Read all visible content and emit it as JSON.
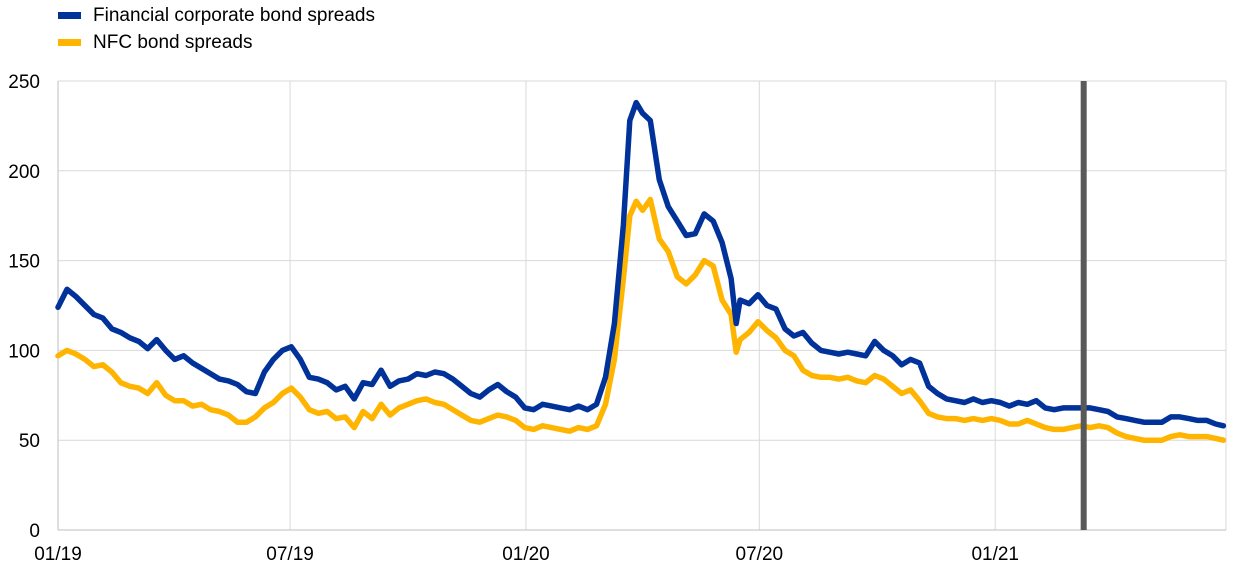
{
  "chart_data": {
    "type": "line",
    "x_axis_type": "date",
    "x_range": [
      "2019-01-01",
      "2021-06-30"
    ],
    "ylim": [
      0,
      250
    ],
    "yticks": [
      0,
      50,
      100,
      150,
      200,
      250
    ],
    "xticks": [
      {
        "date": "2019-01-01",
        "label": "01/19"
      },
      {
        "date": "2019-07-01",
        "label": "07/19"
      },
      {
        "date": "2020-01-01",
        "label": "01/20"
      },
      {
        "date": "2020-07-01",
        "label": "07/20"
      },
      {
        "date": "2021-01-01",
        "label": "01/21"
      }
    ],
    "grid": {
      "horizontal": true,
      "vertical": true
    },
    "legend_position": "top-left",
    "vertical_marker": {
      "date": "2021-03-11",
      "color": "#595959"
    },
    "series": [
      {
        "name": "Financial corporate bond spreads",
        "color": "#003299",
        "points": [
          [
            "2019-01-01",
            124
          ],
          [
            "2019-01-08",
            134
          ],
          [
            "2019-01-15",
            130
          ],
          [
            "2019-01-22",
            125
          ],
          [
            "2019-01-29",
            120
          ],
          [
            "2019-02-05",
            118
          ],
          [
            "2019-02-12",
            112
          ],
          [
            "2019-02-19",
            110
          ],
          [
            "2019-02-26",
            107
          ],
          [
            "2019-03-05",
            105
          ],
          [
            "2019-03-12",
            101
          ],
          [
            "2019-03-19",
            106
          ],
          [
            "2019-03-26",
            100
          ],
          [
            "2019-04-02",
            95
          ],
          [
            "2019-04-09",
            97
          ],
          [
            "2019-04-16",
            93
          ],
          [
            "2019-04-23",
            90
          ],
          [
            "2019-04-30",
            87
          ],
          [
            "2019-05-07",
            84
          ],
          [
            "2019-05-14",
            83
          ],
          [
            "2019-05-21",
            81
          ],
          [
            "2019-05-28",
            77
          ],
          [
            "2019-06-04",
            76
          ],
          [
            "2019-06-11",
            88
          ],
          [
            "2019-06-18",
            95
          ],
          [
            "2019-06-25",
            100
          ],
          [
            "2019-07-02",
            102
          ],
          [
            "2019-07-09",
            95
          ],
          [
            "2019-07-16",
            85
          ],
          [
            "2019-07-23",
            84
          ],
          [
            "2019-07-30",
            82
          ],
          [
            "2019-08-06",
            78
          ],
          [
            "2019-08-13",
            80
          ],
          [
            "2019-08-20",
            73
          ],
          [
            "2019-08-27",
            82
          ],
          [
            "2019-09-03",
            81
          ],
          [
            "2019-09-10",
            89
          ],
          [
            "2019-09-17",
            80
          ],
          [
            "2019-09-24",
            83
          ],
          [
            "2019-10-01",
            84
          ],
          [
            "2019-10-08",
            87
          ],
          [
            "2019-10-15",
            86
          ],
          [
            "2019-10-22",
            88
          ],
          [
            "2019-10-29",
            87
          ],
          [
            "2019-11-05",
            84
          ],
          [
            "2019-11-12",
            80
          ],
          [
            "2019-11-19",
            76
          ],
          [
            "2019-11-26",
            74
          ],
          [
            "2019-12-03",
            78
          ],
          [
            "2019-12-10",
            81
          ],
          [
            "2019-12-17",
            77
          ],
          [
            "2019-12-24",
            74
          ],
          [
            "2019-12-31",
            68
          ],
          [
            "2020-01-07",
            67
          ],
          [
            "2020-01-14",
            70
          ],
          [
            "2020-01-21",
            69
          ],
          [
            "2020-01-28",
            68
          ],
          [
            "2020-02-04",
            67
          ],
          [
            "2020-02-11",
            69
          ],
          [
            "2020-02-18",
            67
          ],
          [
            "2020-02-25",
            70
          ],
          [
            "2020-03-03",
            85
          ],
          [
            "2020-03-10",
            115
          ],
          [
            "2020-03-17",
            170
          ],
          [
            "2020-03-22",
            228
          ],
          [
            "2020-03-27",
            238
          ],
          [
            "2020-04-01",
            232
          ],
          [
            "2020-04-07",
            228
          ],
          [
            "2020-04-14",
            195
          ],
          [
            "2020-04-21",
            180
          ],
          [
            "2020-04-28",
            172
          ],
          [
            "2020-05-05",
            164
          ],
          [
            "2020-05-12",
            165
          ],
          [
            "2020-05-19",
            176
          ],
          [
            "2020-05-26",
            172
          ],
          [
            "2020-06-02",
            160
          ],
          [
            "2020-06-09",
            140
          ],
          [
            "2020-06-13",
            115
          ],
          [
            "2020-06-16",
            128
          ],
          [
            "2020-06-23",
            126
          ],
          [
            "2020-06-30",
            131
          ],
          [
            "2020-07-07",
            125
          ],
          [
            "2020-07-14",
            123
          ],
          [
            "2020-07-21",
            112
          ],
          [
            "2020-07-28",
            108
          ],
          [
            "2020-08-04",
            110
          ],
          [
            "2020-08-11",
            104
          ],
          [
            "2020-08-18",
            100
          ],
          [
            "2020-08-25",
            99
          ],
          [
            "2020-09-01",
            98
          ],
          [
            "2020-09-08",
            99
          ],
          [
            "2020-09-15",
            98
          ],
          [
            "2020-09-22",
            97
          ],
          [
            "2020-09-29",
            105
          ],
          [
            "2020-10-06",
            100
          ],
          [
            "2020-10-13",
            97
          ],
          [
            "2020-10-20",
            92
          ],
          [
            "2020-10-27",
            95
          ],
          [
            "2020-11-03",
            93
          ],
          [
            "2020-11-10",
            80
          ],
          [
            "2020-11-17",
            76
          ],
          [
            "2020-11-24",
            73
          ],
          [
            "2020-12-01",
            72
          ],
          [
            "2020-12-08",
            71
          ],
          [
            "2020-12-15",
            73
          ],
          [
            "2020-12-22",
            71
          ],
          [
            "2020-12-29",
            72
          ],
          [
            "2021-01-05",
            71
          ],
          [
            "2021-01-12",
            69
          ],
          [
            "2021-01-19",
            71
          ],
          [
            "2021-01-26",
            70
          ],
          [
            "2021-02-02",
            72
          ],
          [
            "2021-02-09",
            68
          ],
          [
            "2021-02-16",
            67
          ],
          [
            "2021-02-23",
            68
          ],
          [
            "2021-03-02",
            68
          ],
          [
            "2021-03-09",
            68
          ],
          [
            "2021-03-16",
            68
          ],
          [
            "2021-03-23",
            67
          ],
          [
            "2021-03-30",
            66
          ],
          [
            "2021-04-06",
            63
          ],
          [
            "2021-04-13",
            62
          ],
          [
            "2021-04-20",
            61
          ],
          [
            "2021-04-27",
            60
          ],
          [
            "2021-05-04",
            60
          ],
          [
            "2021-05-11",
            60
          ],
          [
            "2021-05-18",
            63
          ],
          [
            "2021-05-25",
            63
          ],
          [
            "2021-06-01",
            62
          ],
          [
            "2021-06-08",
            61
          ],
          [
            "2021-06-15",
            61
          ],
          [
            "2021-06-22",
            59
          ],
          [
            "2021-06-28",
            58
          ]
        ]
      },
      {
        "name": "NFC bond spreads",
        "color": "#FFB400",
        "points": [
          [
            "2019-01-01",
            97
          ],
          [
            "2019-01-08",
            100
          ],
          [
            "2019-01-15",
            98
          ],
          [
            "2019-01-22",
            95
          ],
          [
            "2019-01-29",
            91
          ],
          [
            "2019-02-05",
            92
          ],
          [
            "2019-02-12",
            88
          ],
          [
            "2019-02-19",
            82
          ],
          [
            "2019-02-26",
            80
          ],
          [
            "2019-03-05",
            79
          ],
          [
            "2019-03-12",
            76
          ],
          [
            "2019-03-19",
            82
          ],
          [
            "2019-03-26",
            75
          ],
          [
            "2019-04-02",
            72
          ],
          [
            "2019-04-09",
            72
          ],
          [
            "2019-04-16",
            69
          ],
          [
            "2019-04-23",
            70
          ],
          [
            "2019-04-30",
            67
          ],
          [
            "2019-05-07",
            66
          ],
          [
            "2019-05-14",
            64
          ],
          [
            "2019-05-21",
            60
          ],
          [
            "2019-05-28",
            60
          ],
          [
            "2019-06-04",
            63
          ],
          [
            "2019-06-11",
            68
          ],
          [
            "2019-06-18",
            71
          ],
          [
            "2019-06-25",
            76
          ],
          [
            "2019-07-02",
            79
          ],
          [
            "2019-07-09",
            74
          ],
          [
            "2019-07-16",
            67
          ],
          [
            "2019-07-23",
            65
          ],
          [
            "2019-07-30",
            66
          ],
          [
            "2019-08-06",
            62
          ],
          [
            "2019-08-13",
            63
          ],
          [
            "2019-08-20",
            57
          ],
          [
            "2019-08-27",
            66
          ],
          [
            "2019-09-03",
            62
          ],
          [
            "2019-09-10",
            70
          ],
          [
            "2019-09-17",
            64
          ],
          [
            "2019-09-24",
            68
          ],
          [
            "2019-10-01",
            70
          ],
          [
            "2019-10-08",
            72
          ],
          [
            "2019-10-15",
            73
          ],
          [
            "2019-10-22",
            71
          ],
          [
            "2019-10-29",
            70
          ],
          [
            "2019-11-05",
            67
          ],
          [
            "2019-11-12",
            64
          ],
          [
            "2019-11-19",
            61
          ],
          [
            "2019-11-26",
            60
          ],
          [
            "2019-12-03",
            62
          ],
          [
            "2019-12-10",
            64
          ],
          [
            "2019-12-17",
            63
          ],
          [
            "2019-12-24",
            61
          ],
          [
            "2019-12-31",
            57
          ],
          [
            "2020-01-07",
            56
          ],
          [
            "2020-01-14",
            58
          ],
          [
            "2020-01-21",
            57
          ],
          [
            "2020-01-28",
            56
          ],
          [
            "2020-02-04",
            55
          ],
          [
            "2020-02-11",
            57
          ],
          [
            "2020-02-18",
            56
          ],
          [
            "2020-02-25",
            58
          ],
          [
            "2020-03-03",
            70
          ],
          [
            "2020-03-10",
            95
          ],
          [
            "2020-03-17",
            140
          ],
          [
            "2020-03-22",
            175
          ],
          [
            "2020-03-27",
            183
          ],
          [
            "2020-04-01",
            178
          ],
          [
            "2020-04-07",
            184
          ],
          [
            "2020-04-14",
            162
          ],
          [
            "2020-04-21",
            155
          ],
          [
            "2020-04-28",
            141
          ],
          [
            "2020-05-05",
            137
          ],
          [
            "2020-05-12",
            142
          ],
          [
            "2020-05-19",
            150
          ],
          [
            "2020-05-26",
            147
          ],
          [
            "2020-06-02",
            128
          ],
          [
            "2020-06-09",
            120
          ],
          [
            "2020-06-13",
            99
          ],
          [
            "2020-06-16",
            106
          ],
          [
            "2020-06-23",
            110
          ],
          [
            "2020-06-30",
            116
          ],
          [
            "2020-07-07",
            111
          ],
          [
            "2020-07-14",
            107
          ],
          [
            "2020-07-21",
            100
          ],
          [
            "2020-07-28",
            97
          ],
          [
            "2020-08-04",
            89
          ],
          [
            "2020-08-11",
            86
          ],
          [
            "2020-08-18",
            85
          ],
          [
            "2020-08-25",
            85
          ],
          [
            "2020-09-01",
            84
          ],
          [
            "2020-09-08",
            85
          ],
          [
            "2020-09-15",
            83
          ],
          [
            "2020-09-22",
            82
          ],
          [
            "2020-09-29",
            86
          ],
          [
            "2020-10-06",
            84
          ],
          [
            "2020-10-13",
            80
          ],
          [
            "2020-10-20",
            76
          ],
          [
            "2020-10-27",
            78
          ],
          [
            "2020-11-03",
            72
          ],
          [
            "2020-11-10",
            65
          ],
          [
            "2020-11-17",
            63
          ],
          [
            "2020-11-24",
            62
          ],
          [
            "2020-12-01",
            62
          ],
          [
            "2020-12-08",
            61
          ],
          [
            "2020-12-15",
            62
          ],
          [
            "2020-12-22",
            61
          ],
          [
            "2020-12-29",
            62
          ],
          [
            "2021-01-05",
            61
          ],
          [
            "2021-01-12",
            59
          ],
          [
            "2021-01-19",
            59
          ],
          [
            "2021-01-26",
            61
          ],
          [
            "2021-02-02",
            59
          ],
          [
            "2021-02-09",
            57
          ],
          [
            "2021-02-16",
            56
          ],
          [
            "2021-02-23",
            56
          ],
          [
            "2021-03-02",
            57
          ],
          [
            "2021-03-09",
            58
          ],
          [
            "2021-03-16",
            57
          ],
          [
            "2021-03-23",
            58
          ],
          [
            "2021-03-30",
            57
          ],
          [
            "2021-04-06",
            54
          ],
          [
            "2021-04-13",
            52
          ],
          [
            "2021-04-20",
            51
          ],
          [
            "2021-04-27",
            50
          ],
          [
            "2021-05-04",
            50
          ],
          [
            "2021-05-11",
            50
          ],
          [
            "2021-05-18",
            52
          ],
          [
            "2021-05-25",
            53
          ],
          [
            "2021-06-01",
            52
          ],
          [
            "2021-06-08",
            52
          ],
          [
            "2021-06-15",
            52
          ],
          [
            "2021-06-22",
            51
          ],
          [
            "2021-06-28",
            50
          ]
        ]
      }
    ]
  }
}
